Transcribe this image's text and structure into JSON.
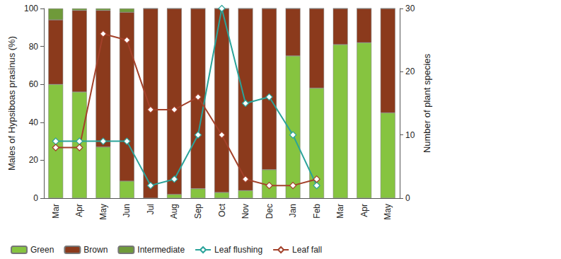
{
  "chart_data": {
    "type": "bar",
    "stacked": true,
    "grid": false,
    "legend": "bottom",
    "ylabel": "Males of Hypsiboas prasinus (%)",
    "y2label": "Number of plant species",
    "categories": [
      "Mar",
      "Apr",
      "May",
      "Jun",
      "Jul",
      "Aug",
      "Sep",
      "Oct",
      "Nov",
      "Dec",
      "Jan",
      "Feb",
      "Mar",
      "Apr",
      "May"
    ],
    "ylim": [
      0,
      100
    ],
    "yticks": [
      0,
      20,
      40,
      60,
      80,
      100
    ],
    "y2lim": [
      0,
      30
    ],
    "y2ticks": [
      0,
      10,
      20,
      30
    ],
    "series": [
      {
        "name": "Green",
        "type": "bar",
        "color": "#86c440",
        "values": [
          60,
          56,
          27,
          9,
          0,
          2,
          5,
          3,
          4,
          15,
          75,
          58,
          81,
          82,
          45
        ]
      },
      {
        "name": "Brown",
        "type": "bar",
        "color": "#8b3a1c",
        "values": [
          34,
          43,
          72,
          89,
          100,
          98,
          95,
          97,
          96,
          85,
          25,
          42,
          19,
          18,
          55
        ]
      },
      {
        "name": "Intermediate",
        "type": "bar",
        "color": "#6f9a3a",
        "values": [
          6,
          1,
          1,
          2,
          0,
          0,
          0,
          0,
          0,
          0,
          0,
          0,
          0,
          0,
          0
        ]
      },
      {
        "name": "Leaf flushing",
        "type": "line",
        "axis": "y2",
        "color": "#2aa39a",
        "marker": "diamond",
        "values": [
          9,
          9,
          9,
          9,
          2,
          3,
          10,
          30,
          15,
          16,
          10,
          2,
          null,
          null,
          null
        ]
      },
      {
        "name": "Leaf fall",
        "type": "line",
        "axis": "y2",
        "color": "#a3412a",
        "marker": "diamond",
        "values": [
          8,
          8,
          26,
          25,
          14,
          14,
          16,
          10,
          3,
          2,
          2,
          3,
          null,
          null,
          null
        ]
      }
    ]
  }
}
